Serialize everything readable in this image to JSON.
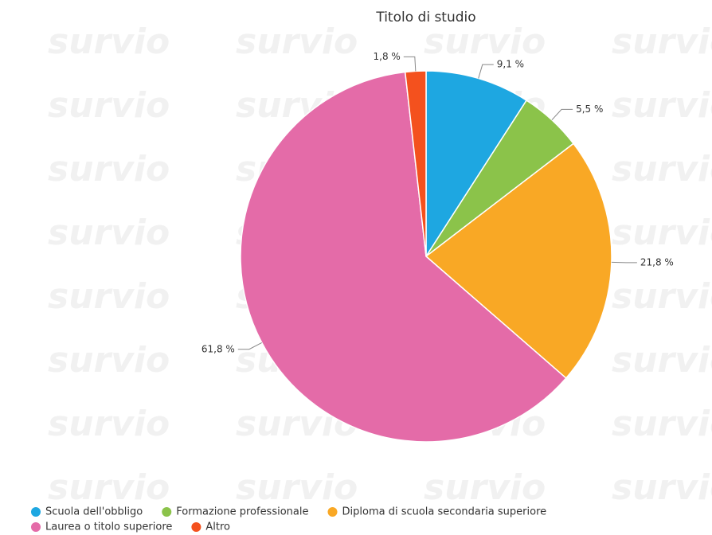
{
  "chart_data": {
    "type": "pie",
    "title": "Titolo di studio",
    "watermark": "survio",
    "categories": [
      "Scuola dell'obbligo",
      "Formazione professionale",
      "Diploma di scuola secondaria superiore",
      "Laurea o titolo superiore",
      "Altro"
    ],
    "values": [
      9.1,
      5.5,
      21.8,
      61.8,
      1.8
    ],
    "value_labels": [
      "9,1 %",
      "5,5 %",
      "21,8 %",
      "61,8 %",
      "1,8 %"
    ],
    "colors": [
      "#1ea7e1",
      "#8bc34a",
      "#f9a825",
      "#e46ba8",
      "#f4511e"
    ],
    "legend": "bottom"
  }
}
